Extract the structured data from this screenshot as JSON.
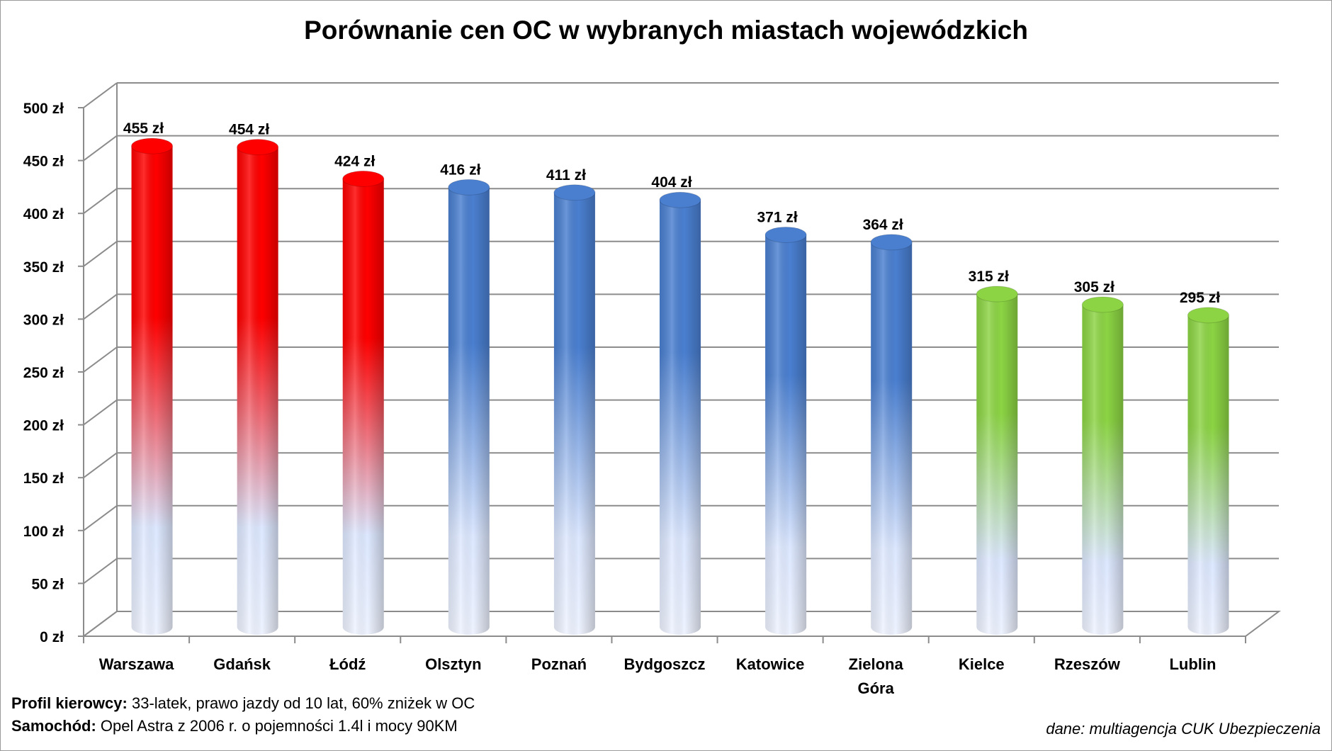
{
  "chart_data": {
    "type": "bar",
    "title": "Porównanie cen OC w wybranych miastach wojewódzkich",
    "categories": [
      "Warszawa",
      "Gdańsk",
      "Łódź",
      "Olsztyn",
      "Poznań",
      "Bydgoszcz",
      "Katowice",
      "Zielona Góra",
      "Kielce",
      "Rzeszów",
      "Lublin"
    ],
    "category_lines": [
      [
        "Warszawa"
      ],
      [
        "Gdańsk"
      ],
      [
        "Łódź"
      ],
      [
        "Olsztyn"
      ],
      [
        "Poznań"
      ],
      [
        "Bydgoszcz"
      ],
      [
        "Katowice"
      ],
      [
        "Zielona",
        "Góra"
      ],
      [
        "Kielce"
      ],
      [
        "Rzeszów"
      ],
      [
        "Lublin"
      ]
    ],
    "values": [
      455,
      454,
      424,
      416,
      411,
      404,
      371,
      364,
      315,
      305,
      295
    ],
    "data_labels": [
      "455 zł",
      "454 zł",
      "424 zł",
      "416 zł",
      "411 zł",
      "404 zł",
      "371 zł",
      "364 zł",
      "315 zł",
      "305 zł",
      "295 zł"
    ],
    "bar_groups": [
      "red",
      "red",
      "red",
      "blue",
      "blue",
      "blue",
      "blue",
      "blue",
      "green",
      "green",
      "green"
    ],
    "colors": {
      "red": "#ff0000",
      "blue": "#4a7fd0",
      "green": "#8cd444",
      "pale": "#dde8ff"
    },
    "y_ticks": [
      0,
      50,
      100,
      150,
      200,
      250,
      300,
      350,
      400,
      450,
      500
    ],
    "y_tick_labels": [
      "0 zł",
      "50 zł",
      "100 zł",
      "150 zł",
      "200 zł",
      "250 zł",
      "300 zł",
      "350 zł",
      "400 zł",
      "450 zł",
      "500 zł"
    ],
    "ylim": [
      0,
      500
    ],
    "grid": true,
    "xlabel": "",
    "ylabel": ""
  },
  "footer": {
    "profile_label": "Profil kierowcy:",
    "profile_text": "33-latek, prawo jazdy od 10 lat, 60% zniżek w OC",
    "car_label": "Samochód:",
    "car_text": "Opel Astra z 2006 r. o pojemności 1.4l i mocy 90KM"
  },
  "source": "dane: multiagencja CUK Ubezpieczenia"
}
